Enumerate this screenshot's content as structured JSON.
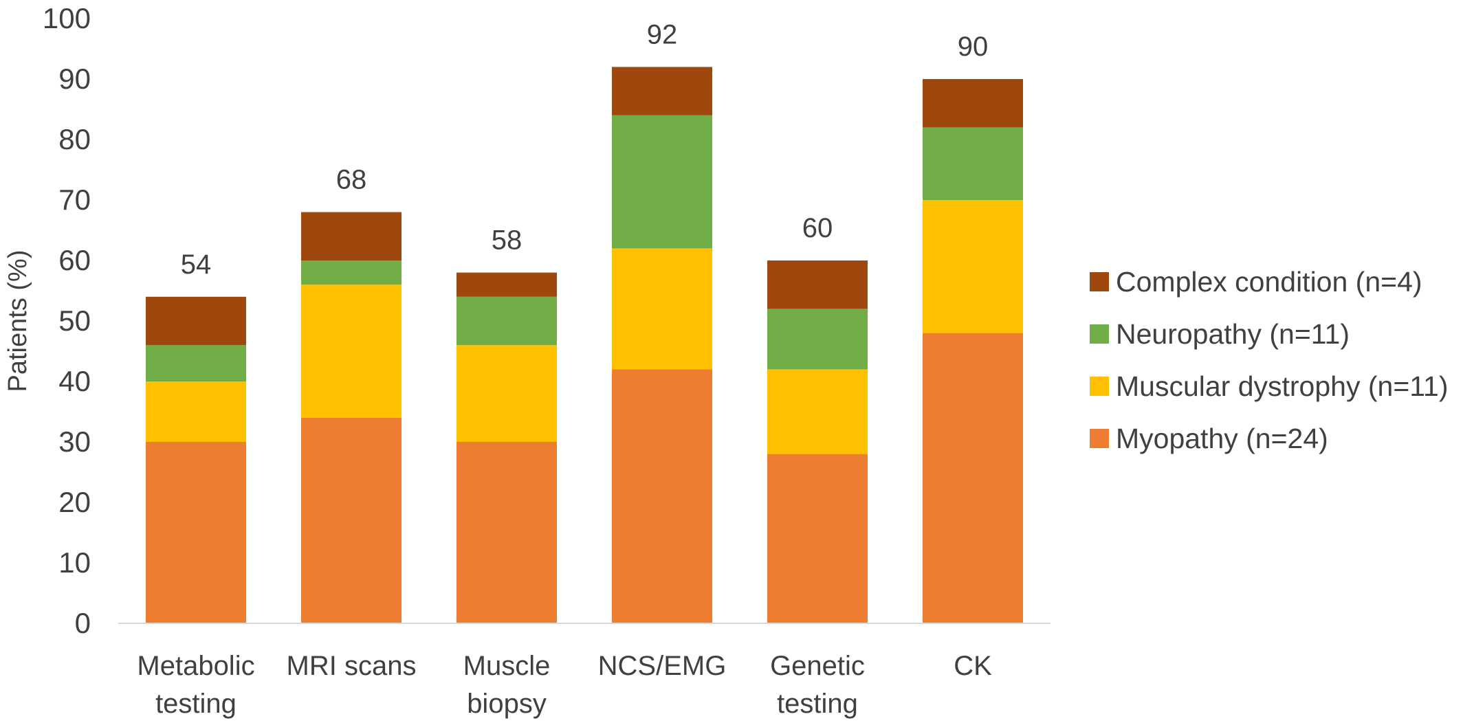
{
  "chart_data": {
    "type": "bar",
    "stacked": true,
    "categories": [
      [
        "Metabolic",
        "testing"
      ],
      [
        "MRI scans"
      ],
      [
        "Muscle",
        "biopsy"
      ],
      [
        "NCS/EMG"
      ],
      [
        "Genetic",
        "testing"
      ],
      [
        "CK"
      ]
    ],
    "series": [
      {
        "name": "Myopathy (n=24)",
        "color": "#ED7D31",
        "values": [
          30,
          34,
          30,
          42,
          28,
          48
        ]
      },
      {
        "name": "Muscular dystrophy (n=11)",
        "color": "#FFC000",
        "values": [
          10,
          22,
          16,
          20,
          14,
          22
        ]
      },
      {
        "name": "Neuropathy (n=11)",
        "color": "#70AD47",
        "values": [
          6,
          4,
          8,
          22,
          10,
          12
        ]
      },
      {
        "name": "Complex condition (n=4)",
        "color": "#9E480E",
        "values": [
          8,
          8,
          4,
          8,
          8,
          8
        ]
      }
    ],
    "totals": [
      54,
      68,
      58,
      92,
      60,
      90
    ],
    "ylabel": "Patients (%)",
    "xlabel": "",
    "title": "",
    "ylim": [
      0,
      100
    ],
    "yticks": [
      0,
      10,
      20,
      30,
      40,
      50,
      60,
      70,
      80,
      90,
      100
    ],
    "grid": false,
    "legend": {
      "position": "right",
      "order": [
        "Complex condition (n=4)",
        "Neuropathy (n=11)",
        "Muscular dystrophy (n=11)",
        "Myopathy (n=24)"
      ]
    }
  }
}
